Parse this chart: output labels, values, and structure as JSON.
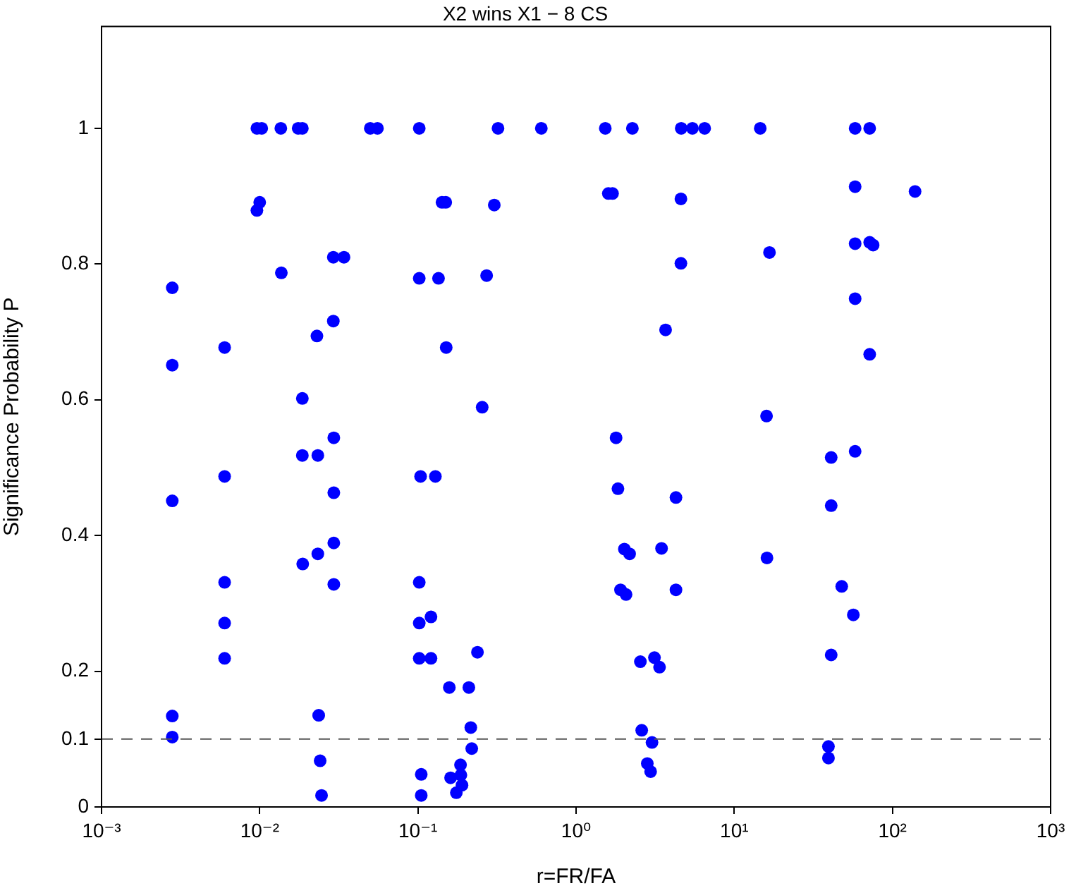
{
  "chart_data": {
    "type": "scatter",
    "title": "X2 wins X1 − 8 CS",
    "xlabel": "r=FR/FA",
    "ylabel": "Significance Probability P",
    "log": "x",
    "marker": "circle",
    "legend": false,
    "xlim": [
      0.001,
      1000
    ],
    "xticks": [
      {
        "value": 0.001,
        "label": "10⁻³"
      },
      {
        "value": 0.01,
        "label": "10⁻²"
      },
      {
        "value": 0.1,
        "label": "10⁻¹"
      },
      {
        "value": 1,
        "label": "10⁰"
      },
      {
        "value": 10,
        "label": "10¹"
      },
      {
        "value": 100,
        "label": "10²"
      },
      {
        "value": 1000,
        "label": "10³"
      }
    ],
    "ylim": [
      0,
      1.15
    ],
    "yticks": [
      0,
      0.1,
      0.2,
      0.4,
      0.6,
      0.8,
      1
    ],
    "ref_lines": [
      {
        "axis": "y",
        "value": 0.1,
        "color": "#555555",
        "line_style": "dashed"
      }
    ],
    "series": [
      {
        "color": "#0000ff",
        "x": [
          0.0028,
          0.0028,
          0.0028,
          0.0028,
          0.0028,
          0.006,
          0.006,
          0.006,
          0.006,
          0.006,
          0.0096,
          0.0103,
          0.01,
          0.0096,
          0.0137,
          0.0136,
          0.0175,
          0.0186,
          0.0186,
          0.0186,
          0.0187,
          0.0233,
          0.023,
          0.0233,
          0.0236,
          0.0241,
          0.0246,
          0.0292,
          0.0341,
          0.0292,
          0.0294,
          0.0294,
          0.0294,
          0.0294,
          0.05,
          0.0555,
          0.102,
          0.102,
          0.104,
          0.102,
          0.102,
          0.102,
          0.105,
          0.105,
          0.121,
          0.121,
          0.129,
          0.135,
          0.142,
          0.15,
          0.151,
          0.158,
          0.161,
          0.175,
          0.186,
          0.187,
          0.19,
          0.21,
          0.216,
          0.219,
          0.238,
          0.255,
          0.272,
          0.304,
          0.321,
          0.603,
          1.53,
          1.6,
          1.7,
          1.79,
          1.84,
          1.91,
          2.02,
          2.07,
          2.18,
          2.27,
          2.55,
          2.6,
          2.82,
          2.96,
          3.02,
          3.13,
          3.37,
          3.47,
          3.68,
          4.28,
          4.28,
          4.6,
          4.6,
          4.62,
          5.44,
          6.5,
          14.6,
          16,
          16.1,
          16.7,
          39.4,
          39.4,
          41,
          41,
          41,
          47.8,
          56.6,
          58.1,
          58.1,
          58.1,
          58.1,
          58.1,
          71.8,
          71.8,
          71.8,
          75.5,
          139
        ],
        "values": [
          0.765,
          0.651,
          0.451,
          0.134,
          0.103,
          0.677,
          0.487,
          0.331,
          0.271,
          0.219,
          1,
          1,
          0.891,
          0.879,
          0.787,
          1,
          1,
          1,
          0.602,
          0.518,
          0.358,
          0.518,
          0.694,
          0.373,
          0.135,
          0.068,
          0.017,
          0.81,
          0.81,
          0.716,
          0.544,
          0.463,
          0.389,
          0.328,
          1,
          1,
          1,
          0.779,
          0.487,
          0.331,
          0.271,
          0.219,
          0.048,
          0.017,
          0.28,
          0.219,
          0.487,
          0.779,
          0.891,
          0.891,
          0.677,
          0.176,
          0.043,
          0.021,
          0.062,
          0.047,
          0.032,
          0.176,
          0.117,
          0.086,
          0.228,
          0.589,
          0.783,
          0.887,
          1,
          1,
          1,
          0.904,
          0.904,
          0.544,
          0.469,
          0.32,
          0.38,
          0.313,
          0.373,
          1,
          0.214,
          0.113,
          0.064,
          0.052,
          0.095,
          0.22,
          0.206,
          0.381,
          0.703,
          0.456,
          0.32,
          0.896,
          0.801,
          1,
          1,
          1,
          1,
          0.576,
          0.367,
          0.817,
          0.089,
          0.072,
          0.515,
          0.444,
          0.224,
          0.325,
          0.283,
          0.524,
          0.749,
          0.83,
          0.914,
          1,
          1,
          0.832,
          0.667,
          0.828,
          0.907
        ]
      }
    ]
  }
}
